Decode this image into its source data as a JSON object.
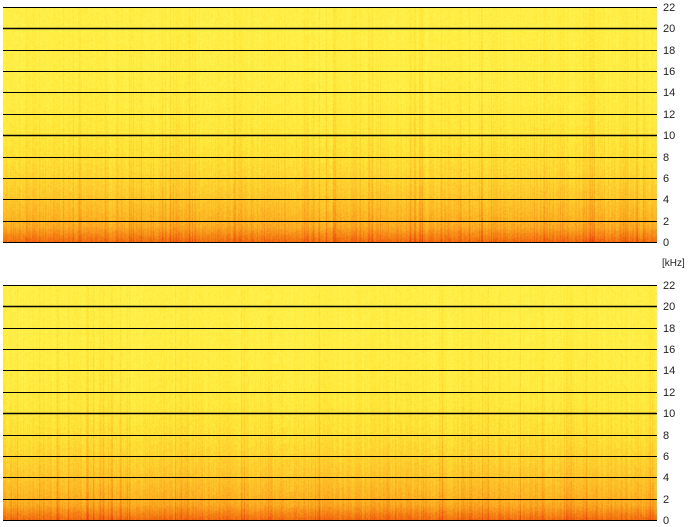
{
  "view": "spectrogram",
  "frequency_unit": "[kHz]",
  "colormap": [
    "#b80000",
    "#e83a0a",
    "#f47a12",
    "#fdb624",
    "#ffe737",
    "#ffff6a"
  ],
  "gridline_color": "#000000",
  "channels": [
    {
      "y_axis": {
        "min": 0,
        "max": 22,
        "step": 2,
        "ticks": [
          "22",
          "20",
          "18",
          "16",
          "14",
          "12",
          "10",
          "8",
          "6",
          "4",
          "2",
          "0"
        ]
      }
    },
    {
      "y_axis": {
        "min": 0,
        "max": 22,
        "step": 2,
        "ticks": [
          "22",
          "20",
          "18",
          "16",
          "14",
          "12",
          "10",
          "8",
          "6",
          "4",
          "2",
          "0"
        ]
      }
    }
  ]
}
